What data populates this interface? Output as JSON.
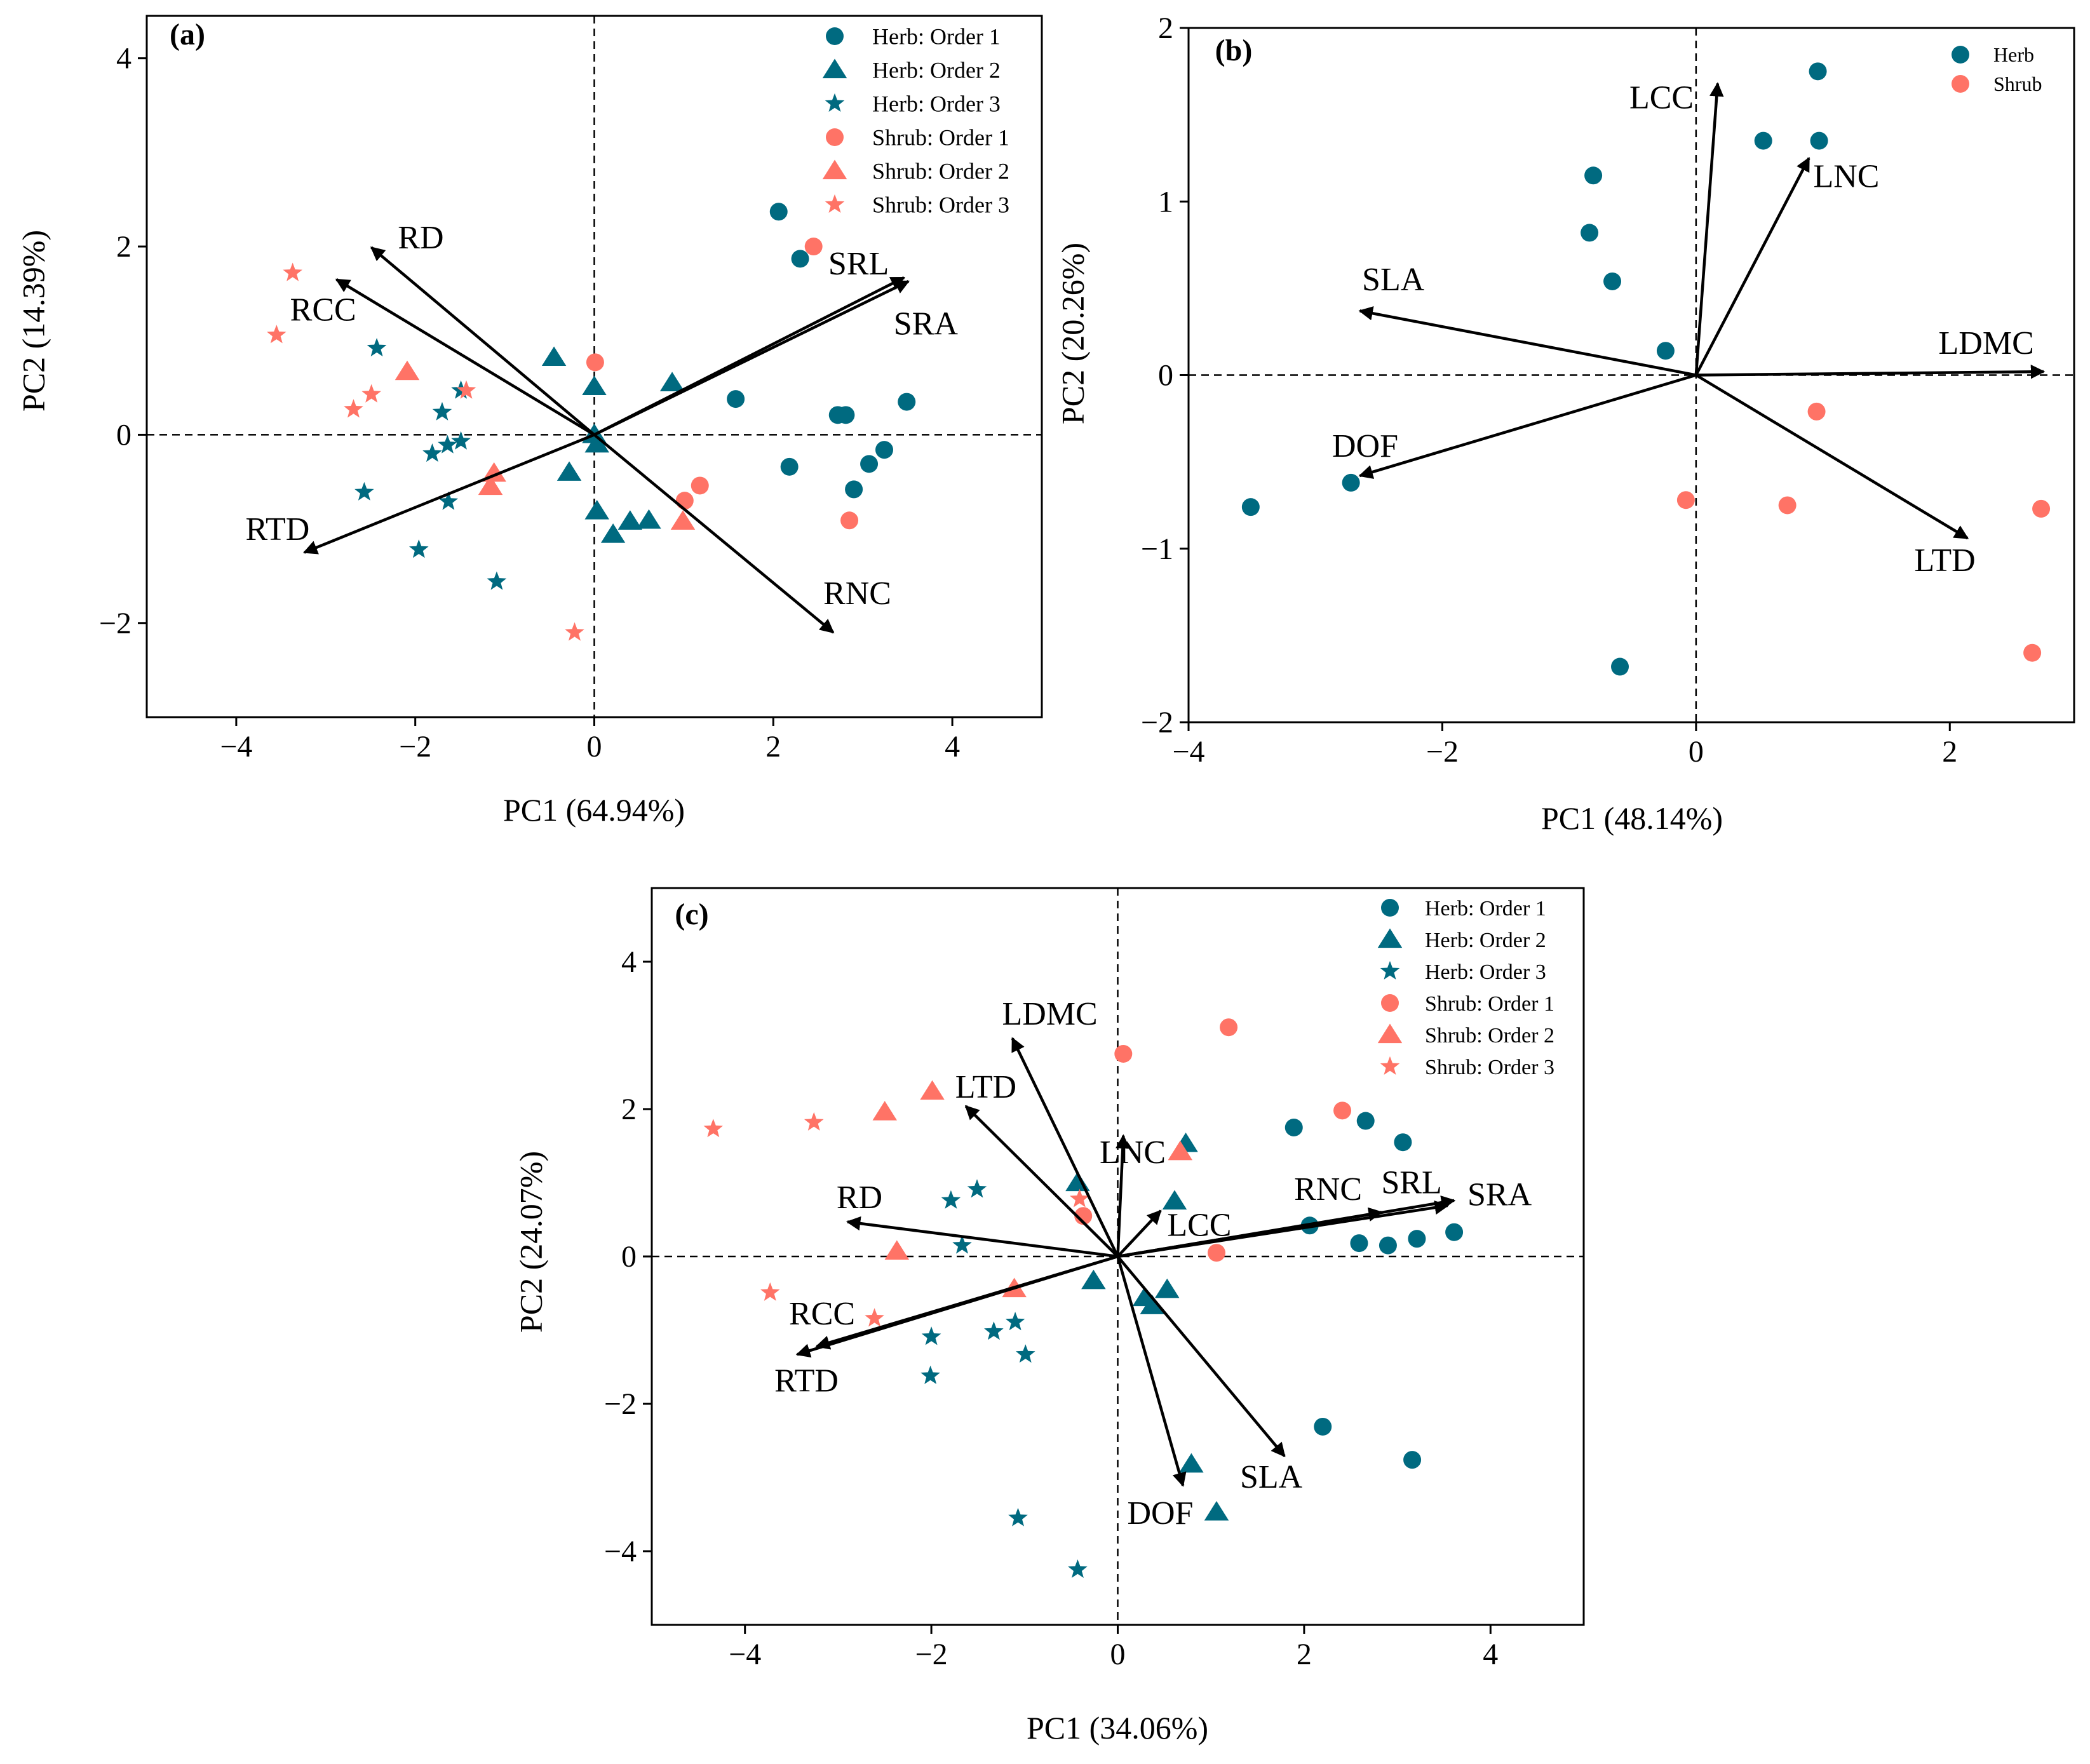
{
  "colors": {
    "herb": "#006a80",
    "shrub": "#ff7366"
  },
  "chart_data": [
    {
      "type": "scatter",
      "title": "(a)",
      "xlabel": "PC1 (64.94%)",
      "ylabel": "PC2 (14.39%)",
      "xlim": [
        -5,
        5
      ],
      "ylim": [
        -3,
        4.45
      ],
      "xticks": [
        -4,
        -2,
        0,
        2,
        4
      ],
      "xtick_labels": [
        "−4",
        "−2",
        "0",
        "2",
        "4"
      ],
      "yticks": [
        -2,
        0,
        2,
        4
      ],
      "ytick_labels": [
        "−2",
        "0",
        "2",
        "4"
      ],
      "legend_position": "top-right",
      "series": [
        {
          "name": "Herb: Order 1",
          "group": "herb",
          "marker": "circle",
          "points": [
            [
              2.06,
              2.37
            ],
            [
              2.3,
              1.87
            ],
            [
              1.58,
              0.38
            ],
            [
              2.18,
              -0.34
            ],
            [
              2.72,
              0.21
            ],
            [
              2.81,
              0.21
            ],
            [
              2.9,
              -0.58
            ],
            [
              3.07,
              -0.31
            ],
            [
              3.24,
              -0.16
            ],
            [
              3.49,
              0.35
            ]
          ]
        },
        {
          "name": "Herb: Order 2",
          "group": "herb",
          "marker": "triangle",
          "points": [
            [
              -0.45,
              0.82
            ],
            [
              0.0,
              0.51
            ],
            [
              0.87,
              0.55
            ],
            [
              -0.28,
              -0.4
            ],
            [
              0.03,
              -0.1
            ],
            [
              0.03,
              -0.81
            ],
            [
              0.21,
              -1.06
            ],
            [
              0.4,
              -0.92
            ],
            [
              0.61,
              -0.91
            ],
            [
              0.0,
              0.0
            ]
          ]
        },
        {
          "name": "Herb: Order 3",
          "group": "herb",
          "marker": "star",
          "points": [
            [
              -2.43,
              0.92
            ],
            [
              -1.49,
              0.47
            ],
            [
              -1.7,
              0.24
            ],
            [
              -1.81,
              -0.2
            ],
            [
              -1.64,
              -0.11
            ],
            [
              -1.49,
              -0.07
            ],
            [
              -2.57,
              -0.61
            ],
            [
              -1.63,
              -0.71
            ],
            [
              -1.96,
              -1.22
            ],
            [
              -1.09,
              -1.56
            ]
          ]
        },
        {
          "name": "Shrub: Order 1",
          "group": "shrub",
          "marker": "circle",
          "points": [
            [
              0.01,
              0.77
            ],
            [
              2.45,
              2.0
            ],
            [
              1.18,
              -0.54
            ],
            [
              1.01,
              -0.7
            ],
            [
              2.85,
              -0.91
            ]
          ]
        },
        {
          "name": "Shrub: Order 2",
          "group": "shrub",
          "marker": "triangle",
          "points": [
            [
              -2.09,
              0.67
            ],
            [
              -1.12,
              -0.41
            ],
            [
              -1.16,
              -0.55
            ],
            [
              0.99,
              -0.92
            ]
          ]
        },
        {
          "name": "Shrub: Order 3",
          "group": "shrub",
          "marker": "star",
          "points": [
            [
              -3.37,
              1.72
            ],
            [
              -3.55,
              1.06
            ],
            [
              -2.49,
              0.43
            ],
            [
              -2.69,
              0.27
            ],
            [
              -0.22,
              -2.1
            ],
            [
              -1.43,
              0.47
            ]
          ]
        }
      ],
      "loadings": [
        {
          "name": "RD",
          "x": -2.49,
          "y": 1.99
        },
        {
          "name": "RCC",
          "x": -2.88,
          "y": 1.65
        },
        {
          "name": "RTD",
          "x": -3.24,
          "y": -1.25
        },
        {
          "name": "RNC",
          "x": 2.67,
          "y": -2.1
        },
        {
          "name": "SRL",
          "x": 3.46,
          "y": 1.67
        },
        {
          "name": "SRA",
          "x": 3.51,
          "y": 1.63
        }
      ]
    },
    {
      "type": "scatter",
      "title": "(b)",
      "xlabel": "PC1 (48.14%)",
      "ylabel": "PC2 (20.26%)",
      "xlim": [
        -4,
        2.98
      ],
      "ylim": [
        -2,
        2
      ],
      "xticks": [
        -4,
        -2,
        0,
        2
      ],
      "xtick_labels": [
        "−4",
        "−2",
        "0",
        "2"
      ],
      "yticks": [
        -2,
        -1,
        0,
        1,
        2
      ],
      "ytick_labels": [
        "−2",
        "−1",
        "0",
        "1",
        "2"
      ],
      "legend_position": "top-right",
      "series": [
        {
          "name": "Herb",
          "group": "herb",
          "marker": "circle",
          "points": [
            [
              0.96,
              1.75
            ],
            [
              0.53,
              1.35
            ],
            [
              0.97,
              1.35
            ],
            [
              -0.81,
              1.15
            ],
            [
              -0.84,
              0.82
            ],
            [
              -0.66,
              0.54
            ],
            [
              -0.24,
              0.14
            ],
            [
              -3.51,
              -0.76
            ],
            [
              -2.72,
              -0.62
            ],
            [
              -0.6,
              -1.68
            ]
          ]
        },
        {
          "name": "Shrub",
          "group": "shrub",
          "marker": "circle",
          "points": [
            [
              0.95,
              -0.21
            ],
            [
              -0.08,
              -0.72
            ],
            [
              0.72,
              -0.75
            ],
            [
              2.72,
              -0.77
            ],
            [
              2.65,
              -1.6
            ]
          ]
        }
      ],
      "loadings": [
        {
          "name": "LCC",
          "x": 0.17,
          "y": 1.68
        },
        {
          "name": "LNC",
          "x": 0.89,
          "y": 1.25
        },
        {
          "name": "SLA",
          "x": -2.65,
          "y": 0.37
        },
        {
          "name": "LDMC",
          "x": 2.74,
          "y": 0.02
        },
        {
          "name": "DOF",
          "x": -2.65,
          "y": -0.58
        },
        {
          "name": "LTD",
          "x": 2.14,
          "y": -0.94
        }
      ]
    },
    {
      "type": "scatter",
      "title": "(c)",
      "xlabel": "PC1 (34.06%)",
      "ylabel": "PC2 (24.07%)",
      "xlim": [
        -5,
        5
      ],
      "ylim": [
        -5,
        5
      ],
      "xticks": [
        -4,
        -2,
        0,
        2,
        4
      ],
      "xtick_labels": [
        "−4",
        "−2",
        "0",
        "2",
        "4"
      ],
      "yticks": [
        -4,
        -2,
        0,
        2,
        4
      ],
      "ytick_labels": [
        "−4",
        "−2",
        "0",
        "2",
        "4"
      ],
      "legend_position": "top-right",
      "series": [
        {
          "name": "Herb: Order 1",
          "group": "herb",
          "marker": "circle",
          "points": [
            [
              1.89,
              1.75
            ],
            [
              2.66,
              1.84
            ],
            [
              3.06,
              1.55
            ],
            [
              2.06,
              0.42
            ],
            [
              2.59,
              0.18
            ],
            [
              2.9,
              0.15
            ],
            [
              3.21,
              0.24
            ],
            [
              3.61,
              0.33
            ],
            [
              2.2,
              -2.31
            ],
            [
              3.16,
              -2.76
            ]
          ]
        },
        {
          "name": "Herb: Order 2",
          "group": "herb",
          "marker": "triangle",
          "points": [
            [
              -0.43,
              1.0
            ],
            [
              0.73,
              1.53
            ],
            [
              0.61,
              0.75
            ],
            [
              -0.26,
              -0.33
            ],
            [
              0.29,
              -0.56
            ],
            [
              0.37,
              -0.67
            ],
            [
              0.53,
              -0.45
            ],
            [
              0.79,
              -2.82
            ],
            [
              1.06,
              -3.47
            ]
          ]
        },
        {
          "name": "Herb: Order 3",
          "group": "herb",
          "marker": "star",
          "points": [
            [
              -1.51,
              0.91
            ],
            [
              -1.79,
              0.76
            ],
            [
              -1.67,
              0.15
            ],
            [
              -2.0,
              -1.09
            ],
            [
              -1.33,
              -1.02
            ],
            [
              -1.1,
              -0.89
            ],
            [
              -0.99,
              -1.33
            ],
            [
              -2.01,
              -1.62
            ],
            [
              -1.07,
              -3.55
            ],
            [
              -0.43,
              -4.25
            ]
          ]
        },
        {
          "name": "Shrub: Order 1",
          "group": "shrub",
          "marker": "circle",
          "points": [
            [
              0.06,
              2.75
            ],
            [
              1.19,
              3.11
            ],
            [
              2.41,
              1.98
            ],
            [
              -0.37,
              0.55
            ],
            [
              1.06,
              0.05
            ]
          ]
        },
        {
          "name": "Shrub: Order 2",
          "group": "shrub",
          "marker": "triangle",
          "points": [
            [
              -2.5,
              1.96
            ],
            [
              -1.99,
              2.24
            ],
            [
              0.67,
              1.42
            ],
            [
              -2.37,
              0.07
            ],
            [
              -1.11,
              -0.44
            ]
          ]
        },
        {
          "name": "Shrub: Order 3",
          "group": "shrub",
          "marker": "star",
          "points": [
            [
              -4.34,
              1.73
            ],
            [
              -3.26,
              1.82
            ],
            [
              -3.73,
              -0.49
            ],
            [
              -2.61,
              -0.84
            ],
            [
              -0.41,
              0.78
            ]
          ]
        }
      ],
      "loadings": [
        {
          "name": "LDMC",
          "x": -1.13,
          "y": 2.96
        },
        {
          "name": "LTD",
          "x": -1.63,
          "y": 2.04
        },
        {
          "name": "LNC",
          "x": 0.06,
          "y": 1.64
        },
        {
          "name": "RD",
          "x": -2.9,
          "y": 0.47
        },
        {
          "name": "LCC",
          "x": 0.46,
          "y": 0.62
        },
        {
          "name": "RNC",
          "x": 2.83,
          "y": 0.6
        },
        {
          "name": "SRL",
          "x": 3.54,
          "y": 0.69
        },
        {
          "name": "SRA",
          "x": 3.61,
          "y": 0.76
        },
        {
          "name": "RCC",
          "x": -3.23,
          "y": -1.22
        },
        {
          "name": "RTD",
          "x": -3.44,
          "y": -1.33
        },
        {
          "name": "DOF",
          "x": 0.7,
          "y": -3.11
        },
        {
          "name": "SLA",
          "x": 1.79,
          "y": -2.71
        }
      ]
    }
  ]
}
